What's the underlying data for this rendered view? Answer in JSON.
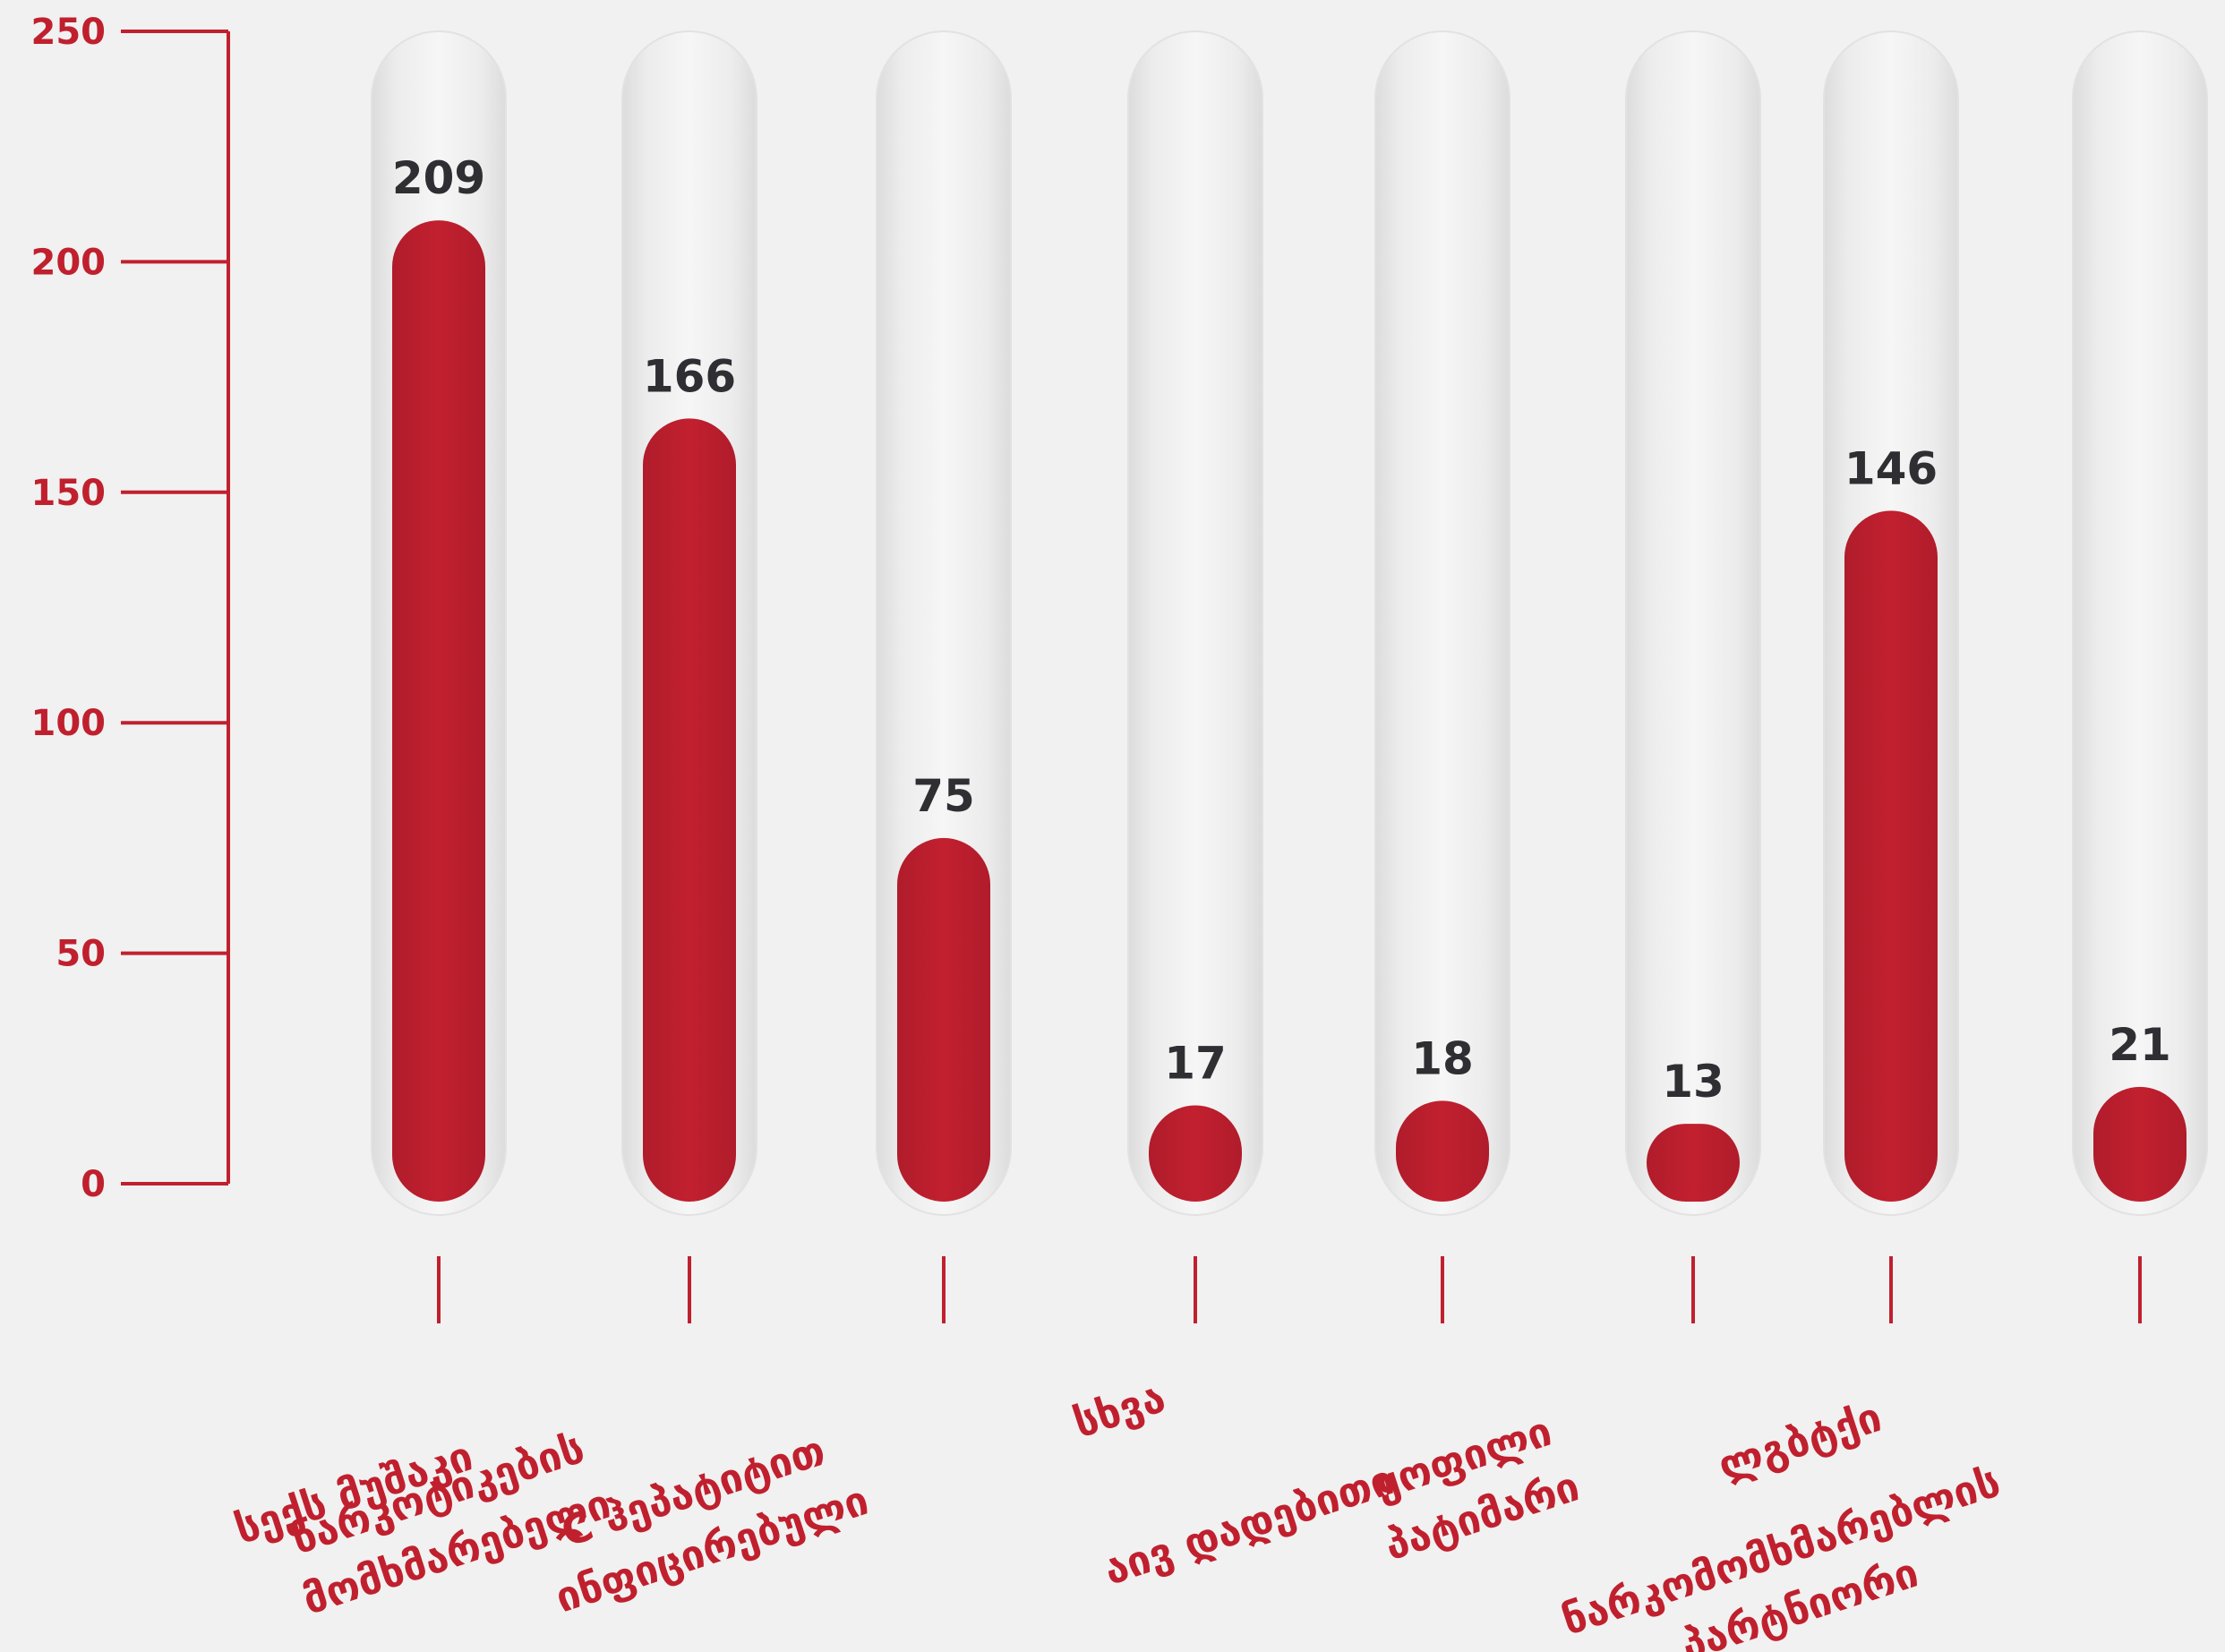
{
  "colors": {
    "accent": "#bd1f2f",
    "axis": "#c0202e",
    "value_text": "#2f2f33",
    "track": "#e9e9e9",
    "background": "#f1f1f1"
  },
  "chart_data": {
    "type": "bar",
    "categories": [
      [
        "სექს მუშაკი"
      ],
      [
        "ნარკოტიკების",
        "მომხმარებელი"
      ],
      [
        "C ჰეპატიტით",
        "ინფიცირებული"
      ],
      [
        "სხვა"
      ],
      [
        "აივ დადებითი"
      ],
      [
        "ყოფილი",
        "პატიმარი"
      ],
      [
        "ლგბტქი"
      ],
      [
        "ნარკომომხმარებლის",
        "პარტნიორი"
      ]
    ],
    "values": [
      209,
      166,
      75,
      17,
      18,
      13,
      146,
      21
    ],
    "value_labels": [
      "209",
      "166",
      "75",
      "17",
      "18",
      "13",
      "146",
      "21"
    ],
    "y_ticks": [
      0,
      50,
      100,
      150,
      200,
      250
    ],
    "ylim": [
      0,
      250
    ],
    "title": "",
    "xlabel": "",
    "ylabel": "",
    "grid": false,
    "legend": "none"
  }
}
